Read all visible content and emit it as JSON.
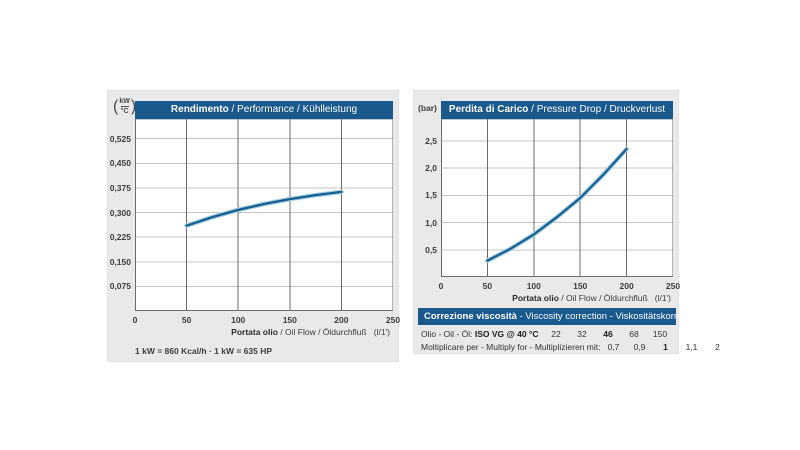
{
  "theme": {
    "accent_blue": "#19598e",
    "curve_color": "#17608f",
    "curve_halo": "#a4cfe4",
    "grid_vertical": "#6b6b6b",
    "grid_horizontal": "#c6c6c6",
    "panel_bg": "#e9e9e9",
    "text_color": "#3c3c3c"
  },
  "left_chart": {
    "unit_top": "kW",
    "unit_bottom": "°C",
    "title_bold": "Rendimento",
    "title_rest": " / Performance / Kühlleistung",
    "y_tick_labels": [
      "0,075",
      "0,150",
      "0,225",
      "0,300",
      "0,375",
      "0,450",
      "0,525"
    ],
    "x_tick_labels": [
      "0",
      "50",
      "100",
      "150",
      "200",
      "250"
    ],
    "xlabel_bold": "Portata olio",
    "xlabel_rest": " / Oil Flow / Öldurchfluß",
    "xlabel_unit": "(l/1')",
    "footnote": "1 kW = 860 Kcal/h · 1 kW = 635 HP"
  },
  "right_chart": {
    "unit": "(bar)",
    "title_bold": "Perdita di Carico",
    "title_rest": " / Pressure Drop / Druckverlust",
    "y_tick_labels": [
      "0,5",
      "1,0",
      "1,5",
      "2,0",
      "2,5"
    ],
    "x_tick_labels": [
      "0",
      "50",
      "100",
      "150",
      "200",
      "250"
    ],
    "xlabel_bold": "Portata olio",
    "xlabel_rest": " / Oil Flow / Öldurchfluß",
    "xlabel_unit": "(l/1')"
  },
  "viscosity_table": {
    "header_bold": "Correzione viscosità",
    "header_rest": " - Viscosity correction - Viskositätskorrektur",
    "row1_label_normal": "Olio - Oil - Öl: ",
    "row1_label_bold": "ISO VG @ 40 °C",
    "row1_values": [
      "22",
      "32",
      "46",
      "68",
      "150"
    ],
    "row1_bold_index": 2,
    "row2_label": "Moltiplicare per - Multiply for - Multiplizieren mit:",
    "row2_values": [
      "0,7",
      "0,9",
      "1",
      "1,1",
      "2"
    ],
    "row2_bold_index": 2
  },
  "chart_data": [
    {
      "type": "line",
      "title": "Rendimento / Performance / Kühlleistung",
      "xlabel": "Portata olio / Oil Flow / Öldurchfluß (l/1')",
      "ylabel": "kW/°C",
      "xlim": [
        0,
        250
      ],
      "ylim": [
        0,
        0.585
      ],
      "x_ticks": [
        0,
        50,
        100,
        150,
        200,
        250
      ],
      "y_ticks": [
        0.075,
        0.15,
        0.225,
        0.3,
        0.375,
        0.45,
        0.525
      ],
      "x": [
        50,
        75,
        100,
        125,
        150,
        175,
        200
      ],
      "y": [
        0.26,
        0.286,
        0.308,
        0.326,
        0.341,
        0.353,
        0.363
      ],
      "grid": true,
      "legend": "none"
    },
    {
      "type": "line",
      "title": "Perdita di Carico / Pressure Drop / Druckverlust",
      "xlabel": "Portata olio / Oil Flow / Öldurchfluß (l/1')",
      "ylabel": "bar",
      "xlim": [
        0,
        250
      ],
      "ylim": [
        0,
        2.9
      ],
      "x_ticks": [
        0,
        50,
        100,
        150,
        200,
        250
      ],
      "y_ticks": [
        0.5,
        1.0,
        1.5,
        2.0,
        2.5
      ],
      "x": [
        50,
        75,
        100,
        125,
        150,
        175,
        200
      ],
      "y": [
        0.3,
        0.52,
        0.78,
        1.1,
        1.45,
        1.88,
        2.35
      ],
      "grid": true,
      "legend": "none"
    }
  ]
}
